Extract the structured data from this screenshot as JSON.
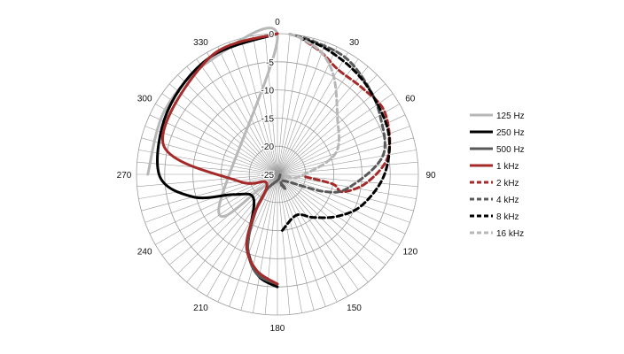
{
  "chart_data": {
    "type": "polar-line",
    "title": "",
    "angle_unit": "degrees",
    "angle_ticks": [
      0,
      30,
      60,
      90,
      120,
      150,
      180,
      210,
      240,
      270,
      300,
      330
    ],
    "angle_tick_labels": [
      "0",
      "30",
      "60",
      "90",
      "120",
      "150",
      "180",
      "210",
      "240",
      "270",
      "300",
      "330"
    ],
    "angle_minor_step": 5,
    "radial_range": [
      -25,
      0
    ],
    "radial_ticks": [
      0,
      -5,
      -10,
      -15,
      -20,
      -25
    ],
    "radial_tick_labels": [
      "0",
      "-5",
      "-10",
      "-15",
      "-20",
      "-25"
    ],
    "grid": true,
    "legend_position": "right",
    "series": [
      {
        "name": "125 Hz",
        "color": "#b7b7b7",
        "dash": "solid",
        "width": 3,
        "points": [
          [
            270,
            -2
          ],
          [
            300,
            -2
          ],
          [
            330,
            -1.5
          ],
          [
            360,
            -0.5
          ],
          [
            240,
            -13
          ],
          [
            230,
            -21
          ],
          [
            225,
            -23.5
          ]
        ]
      },
      {
        "name": "250 Hz",
        "color": "#000000",
        "dash": "solid",
        "width": 3,
        "points": [
          [
            180,
            -5
          ],
          [
            190,
            -6.5
          ],
          [
            200,
            -10
          ],
          [
            205,
            -13
          ],
          [
            225,
            -19
          ],
          [
            245,
            -16.5
          ],
          [
            255,
            -9.5
          ],
          [
            270,
            -4
          ],
          [
            300,
            -2.5
          ],
          [
            330,
            -1
          ],
          [
            360,
            0
          ]
        ]
      },
      {
        "name": "500 Hz",
        "color": "#595959",
        "dash": "solid",
        "width": 3,
        "points": [
          [
            180,
            -5.5
          ],
          [
            192,
            -7
          ],
          [
            202,
            -11
          ],
          [
            210,
            -17
          ],
          [
            215,
            -21.5
          ],
          [
            175,
            -24
          ],
          [
            130,
            -24.5
          ],
          [
            100,
            -24.5
          ]
        ]
      },
      {
        "name": "1 kHz",
        "color": "#a52a2a",
        "dash": "solid",
        "width": 3,
        "points": [
          [
            180,
            -5.5
          ],
          [
            192,
            -7.5
          ],
          [
            203,
            -11
          ],
          [
            210,
            -16.5
          ],
          [
            230,
            -22.5
          ],
          [
            260,
            -18
          ],
          [
            285,
            -4
          ],
          [
            330,
            -1
          ],
          [
            360,
            0
          ]
        ]
      },
      {
        "name": "2 kHz",
        "color": "#a52a2a",
        "dash": "dashed",
        "width": 3,
        "points": [
          [
            95,
            -20
          ],
          [
            100,
            -15
          ],
          [
            105,
            -13
          ],
          [
            95,
            -9
          ],
          [
            80,
            -5
          ],
          [
            60,
            -3
          ],
          [
            45,
            -3.5
          ],
          [
            30,
            -3.5
          ],
          [
            20,
            -2
          ],
          [
            10,
            -0.5
          ]
        ]
      },
      {
        "name": "4 kHz",
        "color": "#595959",
        "dash": "dashed",
        "width": 3,
        "points": [
          [
            160,
            -23
          ],
          [
            150,
            -22
          ],
          [
            140,
            -23.5
          ],
          [
            110,
            -16
          ],
          [
            100,
            -12
          ],
          [
            80,
            -6
          ],
          [
            60,
            -4
          ],
          [
            45,
            -2.5
          ],
          [
            30,
            -1
          ],
          [
            15,
            -0.5
          ],
          [
            5,
            0
          ]
        ]
      },
      {
        "name": "8 kHz",
        "color": "#000000",
        "dash": "dashed",
        "width": 3,
        "points": [
          [
            175,
            -15
          ],
          [
            155,
            -17
          ],
          [
            140,
            -15
          ],
          [
            125,
            -12
          ],
          [
            110,
            -9
          ],
          [
            90,
            -6
          ],
          [
            70,
            -4
          ],
          [
            50,
            -3
          ],
          [
            35,
            -2
          ],
          [
            20,
            -1
          ],
          [
            10,
            -0.5
          ]
        ]
      },
      {
        "name": "16 kHz",
        "color": "#b7b7b7",
        "dash": "dashed",
        "width": 3,
        "points": [
          [
            100,
            -23.5
          ],
          [
            95,
            -21
          ],
          [
            70,
            -14
          ],
          [
            45,
            -10
          ],
          [
            30,
            -5
          ],
          [
            20,
            -2
          ],
          [
            10,
            -0.5
          ],
          [
            5,
            0
          ]
        ]
      }
    ]
  }
}
